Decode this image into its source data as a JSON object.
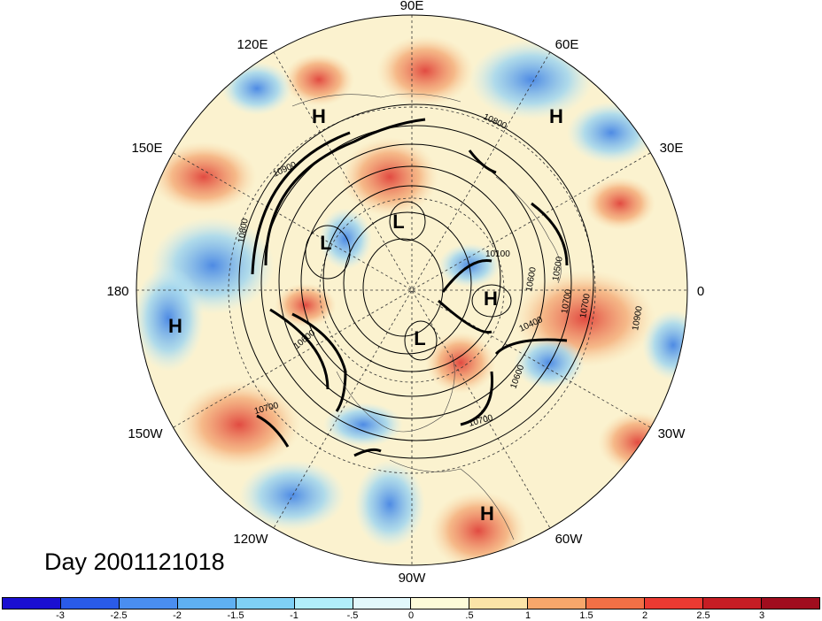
{
  "title": "Day 2001121018",
  "longitude_labels": [
    "90E",
    "60E",
    "30E",
    "0",
    "30W",
    "60W",
    "90W",
    "120W",
    "150W",
    "180",
    "150E",
    "120E"
  ],
  "pressure_centers": [
    "H",
    "H",
    "L",
    "L",
    "H",
    "L",
    "H",
    "H"
  ],
  "contour_labels": [
    "10800",
    "10900",
    "10800",
    "10700",
    "10600",
    "10600",
    "10700",
    "10600",
    "10700",
    "10400",
    "10500",
    "10700",
    "10900",
    "10100"
  ],
  "colorbar": {
    "labels": [
      "-3",
      "-2.5",
      "-2",
      "-1.5",
      "-1",
      "-.5",
      "0",
      ".5",
      "1",
      "1.5",
      "2",
      "2.5",
      "3"
    ],
    "colors": [
      "#1a0fd1",
      "#2a5be8",
      "#4a8ef0",
      "#5fb0f2",
      "#7fd0f5",
      "#b2eefa",
      "#e2f8fb",
      "#fdfbd9",
      "#fbe4a8",
      "#f7a76b",
      "#f27046",
      "#eb3a32",
      "#c61d24",
      "#a00d1e"
    ]
  }
}
